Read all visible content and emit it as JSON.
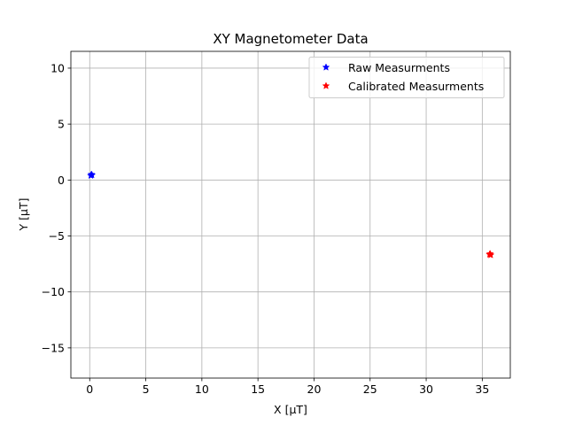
{
  "chart_data": {
    "type": "scatter",
    "title": "XY Magnetometer Data",
    "xlabel": "X [μT]",
    "ylabel": "Y [μT]",
    "xlim": [
      -1.68,
      37.5
    ],
    "ylim": [
      -17.7,
      11.5
    ],
    "xticks": [
      0,
      5,
      10,
      15,
      20,
      25,
      30,
      35
    ],
    "yticks": [
      10,
      5,
      0,
      -5,
      -10,
      -15
    ],
    "xtick_labels": [
      "0",
      "5",
      "10",
      "15",
      "20",
      "25",
      "30",
      "35"
    ],
    "ytick_labels": [
      "10",
      "5",
      "0",
      "−5",
      "−10",
      "−15"
    ],
    "grid": true,
    "legend_position": "top-right",
    "marker": "star",
    "series": [
      {
        "name": "Raw Measurments",
        "color": "#0000ff",
        "points": [
          [
            0.15,
            0.5
          ],
          [
            0.1,
            0.4
          ],
          [
            0.2,
            0.45
          ]
        ]
      },
      {
        "name": "Calibrated Measurments",
        "color": "#ff0000",
        "points": [
          [
            35.7,
            -6.6
          ],
          [
            35.75,
            -6.7
          ],
          [
            35.65,
            -6.65
          ]
        ]
      }
    ]
  }
}
